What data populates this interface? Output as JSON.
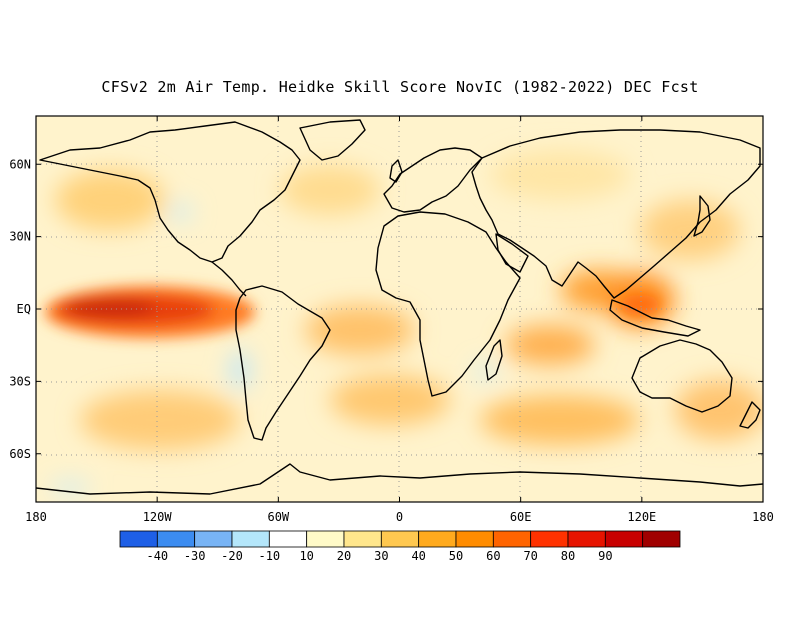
{
  "title": "CFSv2 2m Air Temp. Heidke Skill Score NovIC (1982-2022) DEC Fcst",
  "map": {
    "projection": "Equirectangular global, 180W to 180E",
    "lat_range": [
      -80,
      80
    ],
    "lon_range": [
      -180,
      180
    ],
    "lat_ticks": [
      {
        "value": 60,
        "label": "60N"
      },
      {
        "value": 30,
        "label": "30N"
      },
      {
        "value": 0,
        "label": "EQ"
      },
      {
        "value": -30,
        "label": "30S"
      },
      {
        "value": -60,
        "label": "60S"
      }
    ],
    "lon_ticks": [
      {
        "value": -180,
        "label": "180"
      },
      {
        "value": -120,
        "label": "120W"
      },
      {
        "value": -60,
        "label": "60W"
      },
      {
        "value": 0,
        "label": "0"
      },
      {
        "value": 60,
        "label": "60E"
      },
      {
        "value": 120,
        "label": "120E"
      },
      {
        "value": 180,
        "label": "180"
      }
    ],
    "gridlines": "dotted",
    "coastlines": "black",
    "skill_regions": [
      {
        "region": "Equatorial east Pacific",
        "lon": -130,
        "lat": 0,
        "level": "70-80"
      },
      {
        "region": "Central Pacific north",
        "lon": -150,
        "lat": 20,
        "level": "30-40"
      },
      {
        "region": "Maritime Continent",
        "lon": 115,
        "lat": 5,
        "level": "40-60"
      },
      {
        "region": "Equatorial Atlantic",
        "lon": -20,
        "lat": -5,
        "level": "30-40"
      },
      {
        "region": "South Atlantic",
        "lon": -10,
        "lat": -30,
        "level": "30-40"
      },
      {
        "region": "Southern Indian Ocean",
        "lon": 75,
        "lat": -35,
        "level": "30-40"
      },
      {
        "region": "Southwest Pacific",
        "lon": -120,
        "lat": -40,
        "level": "20-30"
      },
      {
        "region": "East of Australia",
        "lon": 170,
        "lat": -30,
        "level": "20-30"
      },
      {
        "region": "Bay of Bengal / Arabian Sea",
        "lon": 75,
        "lat": 10,
        "level": "40-50"
      }
    ]
  },
  "colorbar": {
    "bins": [
      {
        "color": "#1e5fe6"
      },
      {
        "color": "#3c8cf0"
      },
      {
        "color": "#78b4f5"
      },
      {
        "color": "#b4e6fa"
      },
      {
        "color": "#ffffff"
      },
      {
        "color": "#fffac8"
      },
      {
        "color": "#ffe68c"
      },
      {
        "color": "#ffc850"
      },
      {
        "color": "#ffaa1e"
      },
      {
        "color": "#ff8c00"
      },
      {
        "color": "#ff6400"
      },
      {
        "color": "#ff3200"
      },
      {
        "color": "#e61400"
      },
      {
        "color": "#c80000"
      },
      {
        "color": "#a00000"
      }
    ],
    "labels": [
      "-40",
      "-30",
      "-20",
      "-10",
      "10",
      "20",
      "30",
      "40",
      "50",
      "60",
      "70",
      "80",
      "90"
    ]
  }
}
